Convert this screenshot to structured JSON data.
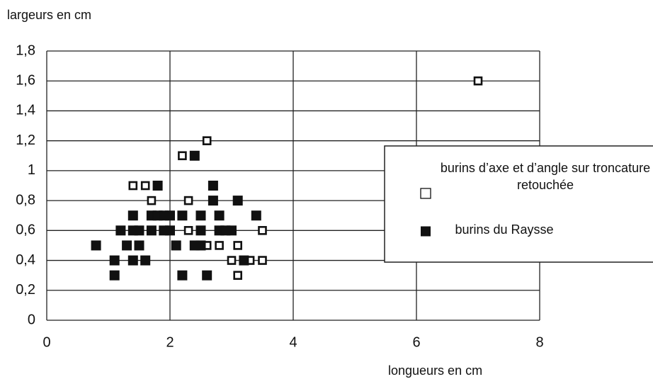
{
  "chart_data": {
    "type": "scatter",
    "y_label": "largeurs  en  cm",
    "x_label": "longueurs  en  cm",
    "xlim": [
      0,
      8
    ],
    "ylim": [
      0,
      1.8
    ],
    "xticks": [
      0,
      2,
      4,
      6,
      8
    ],
    "yticks": [
      0,
      {
        "value": 0.2,
        "label": "0,2"
      },
      {
        "value": 0.4,
        "label": "0,4"
      },
      {
        "value": 0.6,
        "label": "0,6"
      },
      {
        "value": 0.8,
        "label": "0,8"
      },
      1,
      {
        "value": 1.2,
        "label": "1,2"
      },
      {
        "value": 1.4,
        "label": "1,4"
      },
      {
        "value": 1.6,
        "label": "1,6"
      },
      {
        "value": 1.8,
        "label": "1,8"
      }
    ],
    "grid": true,
    "series": [
      {
        "name": "burins d’axe et d’angle sur troncature retouchée",
        "color": "#111111",
        "marker": "open-square",
        "x": [
          7,
          2.6,
          2.2,
          1.4,
          1.6,
          1.7,
          2.3,
          2.3,
          3.5,
          2.6,
          2.8,
          3.1,
          3.0,
          3.3,
          3.5,
          3.1
        ],
        "values": [
          1.6,
          1.2,
          1.1,
          0.9,
          0.9,
          0.8,
          0.8,
          0.6,
          0.6,
          0.5,
          0.5,
          0.5,
          0.4,
          0.4,
          0.4,
          0.3
        ]
      },
      {
        "name": "burins du Raysse",
        "color": "#111111",
        "marker": "filled-square",
        "x": [
          2.4,
          1.8,
          2.7,
          2.7,
          3.1,
          1.4,
          1.7,
          1.8,
          1.9,
          2.0,
          2.2,
          2.5,
          2.8,
          3.4,
          1.2,
          1.4,
          1.5,
          1.7,
          1.9,
          2.0,
          2.5,
          2.8,
          2.9,
          3.0,
          0.8,
          1.3,
          1.5,
          2.1,
          2.4,
          2.5,
          1.1,
          1.4,
          1.6,
          3.2,
          1.1,
          2.2,
          2.6
        ],
        "values": [
          1.1,
          0.9,
          0.9,
          0.8,
          0.8,
          0.7,
          0.7,
          0.7,
          0.7,
          0.7,
          0.7,
          0.7,
          0.7,
          0.7,
          0.6,
          0.6,
          0.6,
          0.6,
          0.6,
          0.6,
          0.6,
          0.6,
          0.6,
          0.6,
          0.5,
          0.5,
          0.5,
          0.5,
          0.5,
          0.5,
          0.4,
          0.4,
          0.4,
          0.4,
          0.3,
          0.3,
          0.3
        ]
      }
    ]
  }
}
